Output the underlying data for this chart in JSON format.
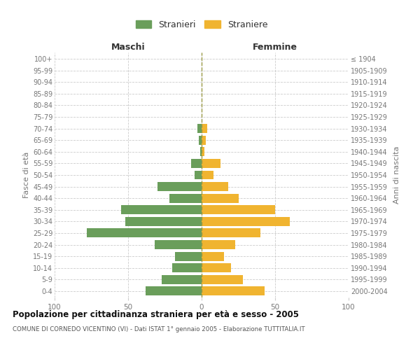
{
  "age_groups": [
    "0-4",
    "5-9",
    "10-14",
    "15-19",
    "20-24",
    "25-29",
    "30-34",
    "35-39",
    "40-44",
    "45-49",
    "50-54",
    "55-59",
    "60-64",
    "65-69",
    "70-74",
    "75-79",
    "80-84",
    "85-89",
    "90-94",
    "95-99",
    "100+"
  ],
  "birth_years": [
    "2000-2004",
    "1995-1999",
    "1990-1994",
    "1985-1989",
    "1980-1984",
    "1975-1979",
    "1970-1974",
    "1965-1969",
    "1960-1964",
    "1955-1959",
    "1950-1954",
    "1945-1949",
    "1940-1944",
    "1935-1939",
    "1930-1934",
    "1925-1929",
    "1920-1924",
    "1915-1919",
    "1910-1914",
    "1905-1909",
    "≤ 1904"
  ],
  "maschi": [
    38,
    27,
    20,
    18,
    32,
    78,
    52,
    55,
    22,
    30,
    5,
    7,
    1,
    2,
    3,
    0,
    0,
    0,
    0,
    0,
    0
  ],
  "femmine": [
    43,
    28,
    20,
    15,
    23,
    40,
    60,
    50,
    25,
    18,
    8,
    13,
    2,
    3,
    4,
    0,
    0,
    0,
    0,
    0,
    0
  ],
  "maschi_color": "#6a9e5b",
  "femmine_color": "#f0b430",
  "title": "Popolazione per cittadinanza straniera per età e sesso - 2005",
  "subtitle": "COMUNE DI CORNEDO VICENTINO (VI) - Dati ISTAT 1° gennaio 2005 - Elaborazione TUTTITALIA.IT",
  "label_maschi": "Maschi",
  "label_femmine": "Femmine",
  "ylabel_left": "Fasce di età",
  "ylabel_right": "Anni di nascita",
  "legend_maschi": "Stranieri",
  "legend_femmine": "Straniere",
  "xlim": 100,
  "bg_color": "#ffffff",
  "grid_color": "#cccccc",
  "tick_color": "#777777",
  "header_color": "#333333",
  "title_color": "#111111",
  "subtitle_color": "#555555",
  "center_line_color": "#999944"
}
